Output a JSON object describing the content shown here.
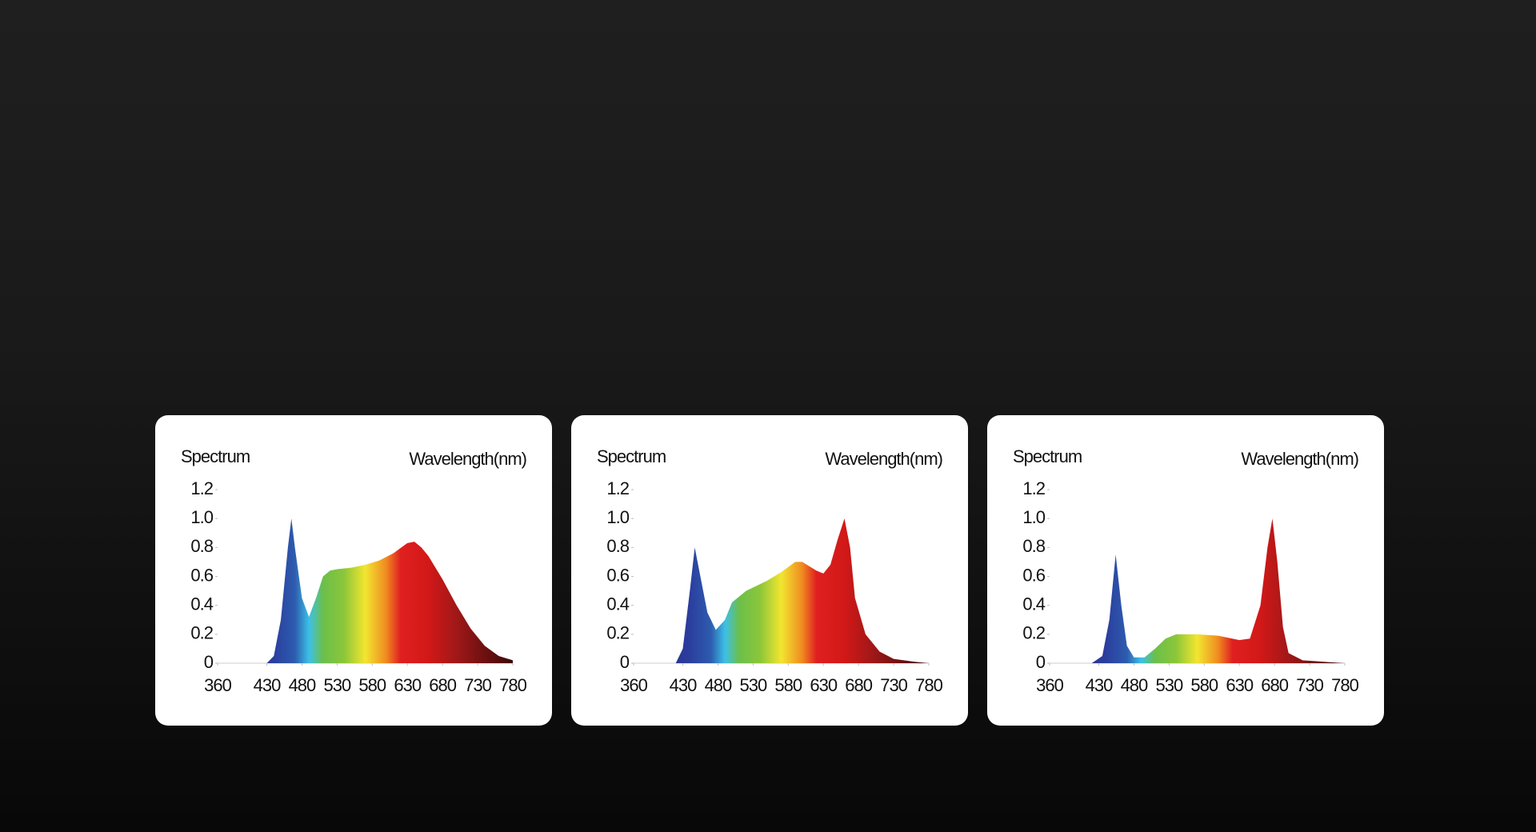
{
  "chart_data": [
    {
      "type": "area",
      "ylabel": "Spectrum",
      "xlabel": "Wavelength(nm)",
      "x": [
        430,
        440,
        450,
        460,
        465,
        470,
        480,
        490,
        500,
        510,
        520,
        530,
        550,
        570,
        590,
        610,
        630,
        640,
        650,
        660,
        680,
        700,
        720,
        740,
        760,
        780
      ],
      "values": [
        0,
        0.05,
        0.3,
        0.8,
        1.0,
        0.8,
        0.45,
        0.32,
        0.45,
        0.6,
        0.64,
        0.65,
        0.66,
        0.68,
        0.71,
        0.76,
        0.83,
        0.84,
        0.8,
        0.74,
        0.58,
        0.4,
        0.24,
        0.12,
        0.05,
        0.02
      ],
      "xlim": [
        360,
        780
      ],
      "xticks": [
        360,
        430,
        480,
        530,
        580,
        630,
        680,
        730,
        780
      ],
      "ylim": [
        0,
        1.2
      ],
      "yticks": [
        0,
        0.2,
        0.4,
        0.6,
        0.8,
        {
          "value": 1,
          "label": "1.0"
        },
        1.2
      ]
    },
    {
      "type": "area",
      "ylabel": "Spectrum",
      "xlabel": "Wavelength(nm)",
      "x": [
        420,
        430,
        440,
        447,
        455,
        465,
        477,
        490,
        500,
        520,
        550,
        570,
        590,
        600,
        620,
        630,
        640,
        650,
        660,
        668,
        675,
        690,
        710,
        730,
        760,
        780
      ],
      "values": [
        0,
        0.1,
        0.5,
        0.8,
        0.6,
        0.35,
        0.23,
        0.3,
        0.42,
        0.5,
        0.57,
        0.63,
        0.7,
        0.7,
        0.64,
        0.62,
        0.68,
        0.85,
        1.0,
        0.8,
        0.45,
        0.2,
        0.08,
        0.03,
        0.01,
        0
      ],
      "xlim": [
        360,
        780
      ],
      "xticks": [
        360,
        430,
        480,
        530,
        580,
        630,
        680,
        730,
        780
      ],
      "ylim": [
        0,
        1.2
      ],
      "yticks": [
        0,
        0.2,
        0.4,
        0.6,
        0.8,
        {
          "value": 1,
          "label": "1.0"
        },
        1.2
      ]
    },
    {
      "type": "area",
      "ylabel": "Spectrum",
      "xlabel": "Wavelength(nm)",
      "x": [
        420,
        435,
        445,
        454,
        462,
        470,
        480,
        495,
        510,
        525,
        540,
        570,
        600,
        630,
        645,
        660,
        670,
        677,
        684,
        692,
        700,
        720,
        750,
        780
      ],
      "values": [
        0,
        0.05,
        0.3,
        0.75,
        0.4,
        0.12,
        0.04,
        0.04,
        0.1,
        0.17,
        0.2,
        0.2,
        0.19,
        0.16,
        0.17,
        0.4,
        0.8,
        1.0,
        0.7,
        0.25,
        0.07,
        0.02,
        0.01,
        0
      ],
      "xlim": [
        360,
        780
      ],
      "xticks": [
        360,
        430,
        480,
        530,
        580,
        630,
        680,
        730,
        780
      ],
      "ylim": [
        0,
        1.2
      ],
      "yticks": [
        0,
        0.2,
        0.4,
        0.6,
        0.8,
        {
          "value": 1,
          "label": "1.0"
        },
        1.2
      ]
    }
  ]
}
